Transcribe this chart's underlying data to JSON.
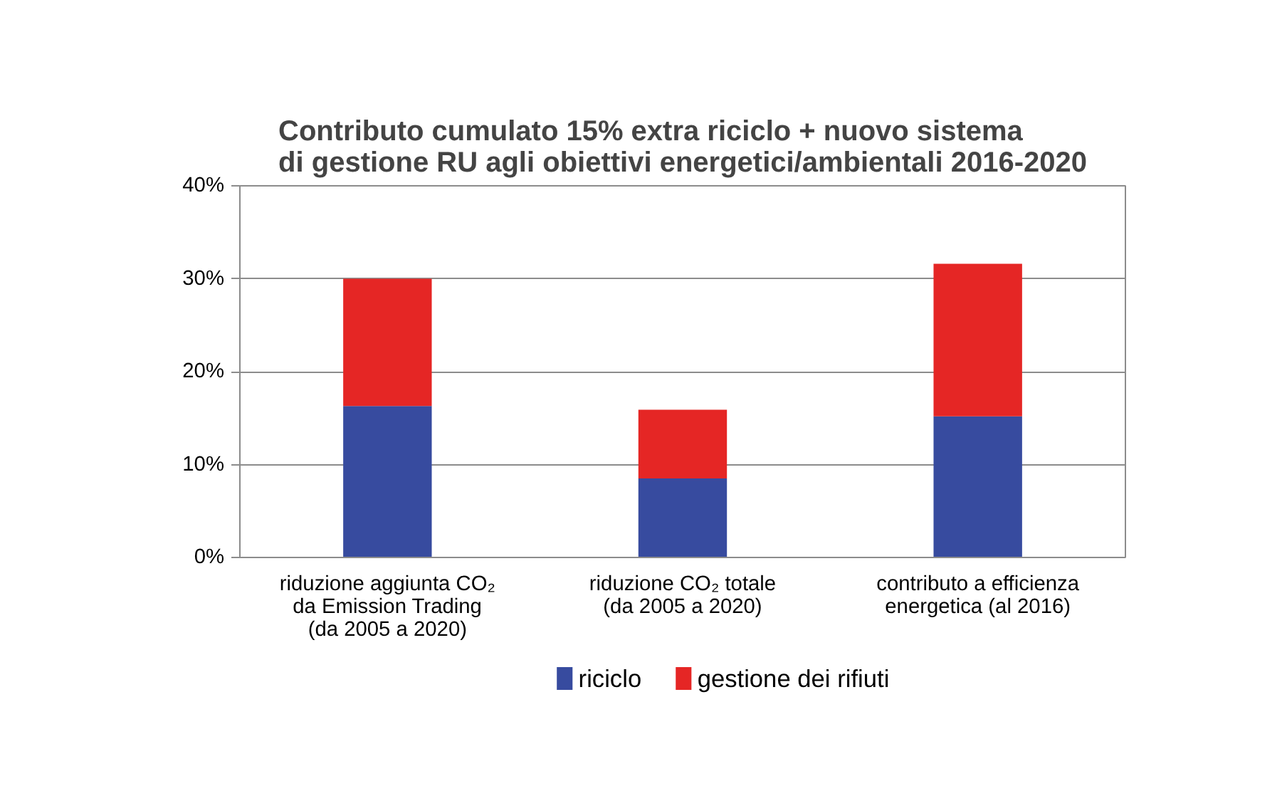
{
  "chart_data": {
    "type": "bar",
    "stacked": true,
    "title": "Contributo cumulato 15% extra riciclo + nuovo sistema\ndi gestione RU agli obiettivi energetici/ambientali 2016-2020",
    "categories": [
      "riduzione aggiunta CO₂\nda Emission Trading\n(da 2005 a 2020)",
      "riduzione CO₂ totale\n(da 2005 a 2020)",
      "contributo a efficienza\nenergetica (al 2016)"
    ],
    "series": [
      {
        "name": "riciclo",
        "color": "#374b9f",
        "values": [
          16.3,
          8.5,
          15.2
        ]
      },
      {
        "name": "gestione dei rifiuti",
        "color": "#e52625",
        "values": [
          13.7,
          7.4,
          16.4
        ]
      }
    ],
    "ylim": [
      0,
      40
    ],
    "yticks": [
      {
        "value": 0,
        "label": "0%"
      },
      {
        "value": 10,
        "label": "10%"
      },
      {
        "value": 20,
        "label": "20%"
      },
      {
        "value": 30,
        "label": "30%"
      },
      {
        "value": 40,
        "label": "40%"
      }
    ],
    "grid": "y",
    "legend": "bottom"
  }
}
